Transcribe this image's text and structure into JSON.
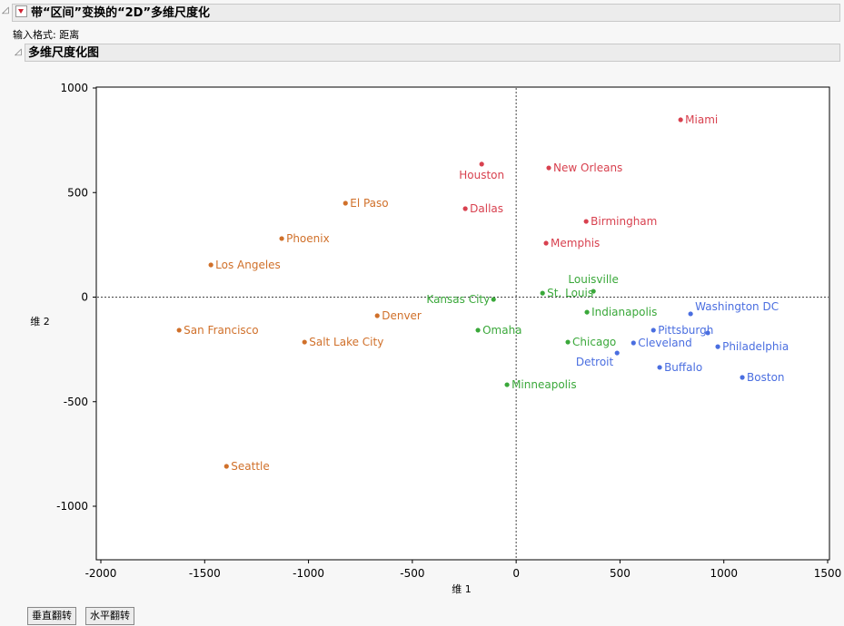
{
  "report": {
    "title": "带“区间”变换的“2D”多维尺度化",
    "input_format": "输入格式: 距离",
    "section_title": "多维尺度化图"
  },
  "buttons": {
    "flip_vertical": "垂直翻转",
    "flip_horizontal": "水平翻转"
  },
  "chart_data": {
    "type": "scatter",
    "xlabel": "维 1",
    "ylabel": "维 2",
    "xlim": [
      -2000,
      1500
    ],
    "ylim": [
      -1250,
      1000
    ],
    "xticks": [
      -2000,
      -1500,
      -1000,
      -500,
      0,
      500,
      1000,
      1500
    ],
    "yticks": [
      1000,
      500,
      0,
      -500,
      -1000
    ],
    "reference_lines": {
      "x": 0,
      "y": 0,
      "style": "dotted"
    },
    "colors": {
      "red": "#d8414f",
      "orange": "#d0702a",
      "green": "#3aa83a",
      "blue": "#4a6ee0"
    },
    "points": [
      {
        "label": "Miami",
        "x": 792,
        "y": 848,
        "group": "red"
      },
      {
        "label": "Houston",
        "x": -166,
        "y": 636,
        "group": "red",
        "below": true
      },
      {
        "label": "New Orleans",
        "x": 157,
        "y": 618,
        "group": "red"
      },
      {
        "label": "Dallas",
        "x": -245,
        "y": 423,
        "group": "red"
      },
      {
        "label": "Birmingham",
        "x": 337,
        "y": 362,
        "group": "red"
      },
      {
        "label": "Memphis",
        "x": 144,
        "y": 258,
        "group": "red"
      },
      {
        "label": "El Paso",
        "x": -822,
        "y": 449,
        "group": "orange"
      },
      {
        "label": "Phoenix",
        "x": -1129,
        "y": 280,
        "group": "orange"
      },
      {
        "label": "Los Angeles",
        "x": -1470,
        "y": 154,
        "group": "orange"
      },
      {
        "label": "San Francisco",
        "x": -1623,
        "y": -158,
        "group": "orange"
      },
      {
        "label": "Salt Lake City",
        "x": -1019,
        "y": -215,
        "group": "orange"
      },
      {
        "label": "Denver",
        "x": -669,
        "y": -89,
        "group": "orange"
      },
      {
        "label": "Seattle",
        "x": -1395,
        "y": -809,
        "group": "orange"
      },
      {
        "label": "Kansas City",
        "x": -109,
        "y": -11,
        "group": "green",
        "left": true
      },
      {
        "label": "St. Louis",
        "x": 127,
        "y": 19,
        "group": "green"
      },
      {
        "label": "Louisville",
        "x": 372,
        "y": 28,
        "group": "green"
      },
      {
        "label": "Indianapolis",
        "x": 341,
        "y": -72,
        "group": "green"
      },
      {
        "label": "Omaha",
        "x": -184,
        "y": -158,
        "group": "green"
      },
      {
        "label": "Chicago",
        "x": 249,
        "y": -215,
        "group": "green"
      },
      {
        "label": "Minneapolis",
        "x": -44,
        "y": -419,
        "group": "green"
      },
      {
        "label": "Detroit",
        "x": 486,
        "y": -267,
        "group": "blue"
      },
      {
        "label": "Cleveland",
        "x": 565,
        "y": -219,
        "group": "blue"
      },
      {
        "label": "Pittsburgh",
        "x": 661,
        "y": -158,
        "group": "blue"
      },
      {
        "label": "Washington DC",
        "x": 840,
        "y": -80,
        "group": "blue",
        "below": true
      },
      {
        "label": "",
        "x": 923,
        "y": -171,
        "group": "blue"
      },
      {
        "label": "Philadelphia",
        "x": 971,
        "y": -237,
        "group": "blue",
        "left": true
      },
      {
        "label": "Buffalo",
        "x": 691,
        "y": -336,
        "group": "blue"
      },
      {
        "label": "Boston",
        "x": 1089,
        "y": -384,
        "group": "blue"
      }
    ]
  }
}
